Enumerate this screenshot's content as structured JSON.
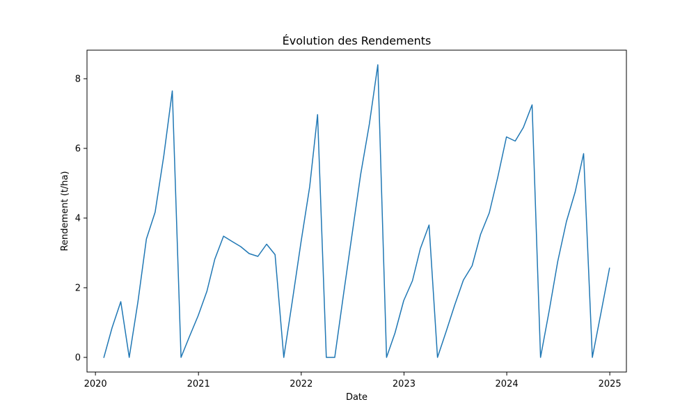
{
  "chart_data": {
    "type": "line",
    "title": "Évolution des Rendements",
    "xlabel": "Date",
    "ylabel": "Rendement (t/ha)",
    "x_tick_labels": [
      "2020",
      "2021",
      "2022",
      "2023",
      "2024",
      "2025"
    ],
    "y_tick_labels": [
      "0",
      "2",
      "4",
      "6",
      "8"
    ],
    "y_ticks": [
      0,
      2,
      4,
      6,
      8
    ],
    "xlim": [
      "2019-12-02",
      "2025-03-01"
    ],
    "ylim": [
      -0.42,
      8.82
    ],
    "grid": false,
    "series": [
      {
        "color": "#1f77b4",
        "points": [
          [
            "2020-01-31",
            0.0
          ],
          [
            "2020-02-29",
            0.85
          ],
          [
            "2020-03-31",
            1.6
          ],
          [
            "2020-04-30",
            0.0
          ],
          [
            "2020-05-31",
            1.6
          ],
          [
            "2020-06-30",
            3.4
          ],
          [
            "2020-07-31",
            4.17
          ],
          [
            "2020-08-31",
            5.8
          ],
          [
            "2020-09-30",
            7.65
          ],
          [
            "2020-10-31",
            0.0
          ],
          [
            "2020-11-30",
            0.6
          ],
          [
            "2020-12-31",
            1.2
          ],
          [
            "2021-01-31",
            1.9
          ],
          [
            "2021-02-28",
            2.82
          ],
          [
            "2021-03-31",
            3.48
          ],
          [
            "2021-04-30",
            3.33
          ],
          [
            "2021-05-31",
            3.18
          ],
          [
            "2021-06-30",
            2.98
          ],
          [
            "2021-07-31",
            2.9
          ],
          [
            "2021-08-31",
            3.25
          ],
          [
            "2021-09-30",
            2.95
          ],
          [
            "2021-10-31",
            0.0
          ],
          [
            "2021-11-30",
            1.6
          ],
          [
            "2021-12-31",
            3.3
          ],
          [
            "2022-01-31",
            4.9
          ],
          [
            "2022-02-28",
            6.97
          ],
          [
            "2022-03-31",
            0.0
          ],
          [
            "2022-04-30",
            0.0
          ],
          [
            "2022-05-31",
            1.8
          ],
          [
            "2022-06-30",
            3.5
          ],
          [
            "2022-07-31",
            5.25
          ],
          [
            "2022-08-31",
            6.7
          ],
          [
            "2022-09-30",
            8.4
          ],
          [
            "2022-10-31",
            0.0
          ],
          [
            "2022-11-30",
            0.7
          ],
          [
            "2022-12-31",
            1.63
          ],
          [
            "2023-01-31",
            2.2
          ],
          [
            "2023-02-28",
            3.12
          ],
          [
            "2023-03-31",
            3.8
          ],
          [
            "2023-04-30",
            0.0
          ],
          [
            "2023-05-31",
            0.75
          ],
          [
            "2023-06-30",
            1.5
          ],
          [
            "2023-07-31",
            2.22
          ],
          [
            "2023-08-31",
            2.63
          ],
          [
            "2023-09-30",
            3.53
          ],
          [
            "2023-10-31",
            4.15
          ],
          [
            "2023-11-30",
            5.17
          ],
          [
            "2023-12-31",
            6.33
          ],
          [
            "2024-01-31",
            6.21
          ],
          [
            "2024-02-29",
            6.6
          ],
          [
            "2024-03-31",
            7.25
          ],
          [
            "2024-04-30",
            0.0
          ],
          [
            "2024-05-31",
            1.35
          ],
          [
            "2024-06-30",
            2.75
          ],
          [
            "2024-07-31",
            3.9
          ],
          [
            "2024-08-31",
            4.75
          ],
          [
            "2024-09-30",
            5.85
          ],
          [
            "2024-10-31",
            0.0
          ],
          [
            "2024-11-30",
            1.25
          ],
          [
            "2024-12-31",
            2.56
          ]
        ]
      }
    ]
  }
}
